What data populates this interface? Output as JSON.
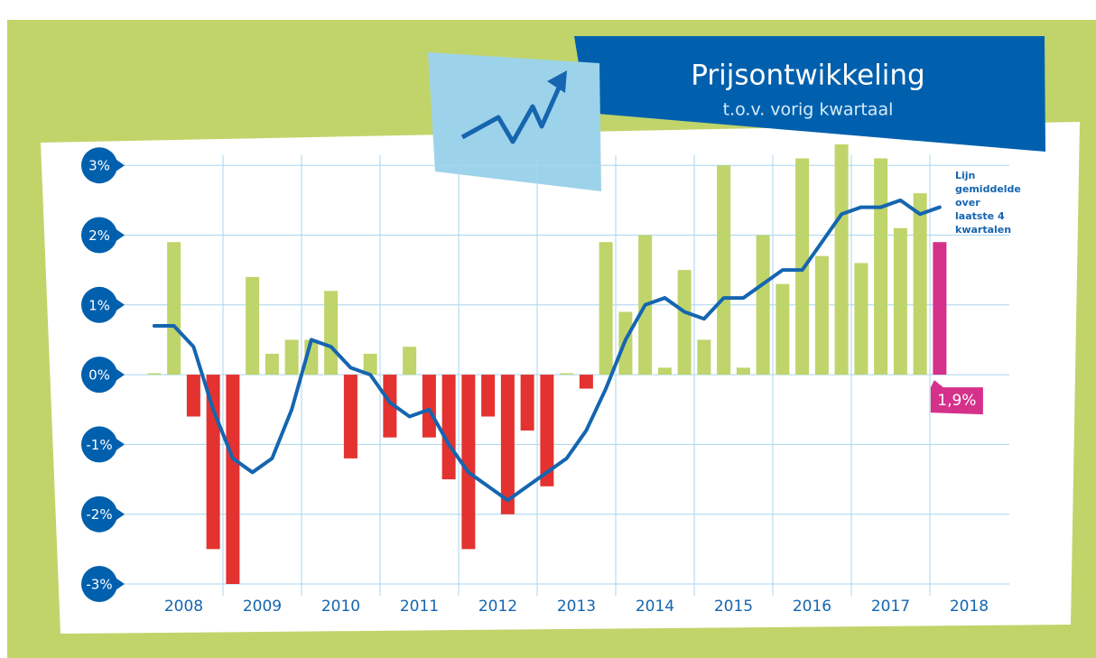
{
  "chart_data": {
    "type": "bar-line",
    "title": "Prijsontwikkeling",
    "subtitle": "t.o.v. vorig kwartaal",
    "categories": [
      null,
      null,
      null,
      null,
      null,
      null,
      null,
      null,
      null,
      null,
      null,
      null,
      null,
      null,
      null,
      null,
      null,
      null,
      null,
      null,
      null,
      null,
      null,
      null,
      null,
      null,
      null,
      null,
      null,
      null,
      null,
      null,
      null,
      null,
      null,
      null,
      null,
      null,
      null,
      null,
      null
    ],
    "year_labels": [
      "2008",
      "2009",
      "2010",
      "2011",
      "2012",
      "2013",
      "2014",
      "2015",
      "2016",
      "2017",
      "2018"
    ],
    "values": [
      0.02,
      1.9,
      -0.6,
      -2.5,
      -3.0,
      1.4,
      0.3,
      0.5,
      0.5,
      1.2,
      -1.2,
      0.3,
      -0.9,
      0.4,
      -0.9,
      -1.5,
      -2.5,
      -0.6,
      -2.0,
      -0.8,
      -1.6,
      0.02,
      -0.2,
      1.9,
      0.9,
      2.0,
      0.1,
      1.5,
      0.5,
      3.0,
      0.1,
      2.0,
      1.3,
      3.1,
      1.7,
      3.3,
      1.6,
      3.1,
      2.1,
      2.6,
      1.9
    ],
    "value_labels": [
      null,
      null,
      null,
      null,
      null,
      null,
      null,
      null,
      null,
      null,
      null,
      null,
      null,
      null,
      null,
      null,
      null,
      null,
      null,
      null,
      null,
      null,
      null,
      null,
      null,
      null,
      null,
      null,
      null,
      null,
      null,
      null,
      null,
      null,
      null,
      null,
      null,
      null,
      null,
      null,
      "1,9%"
    ],
    "positive_color": "#bfd46a",
    "negative_color": "#e3322f",
    "highlight_color": "#d5318b",
    "series": [
      {
        "name": "Lijn gemiddelde over laatste 4 kwartalen",
        "color": "#1565b0",
        "values": [
          0.7,
          0.7,
          0.4,
          -0.5,
          -1.2,
          -1.4,
          -1.2,
          -0.5,
          0.5,
          0.4,
          0.1,
          0.0,
          -0.4,
          -0.6,
          -0.5,
          -1.0,
          -1.4,
          -1.6,
          -1.8,
          -1.6,
          -1.4,
          -1.2,
          -0.8,
          -0.2,
          0.5,
          1.0,
          1.1,
          0.9,
          0.8,
          1.1,
          1.1,
          1.3,
          1.5,
          1.5,
          1.9,
          2.3,
          2.4,
          2.4,
          2.5,
          2.3,
          2.4
        ]
      }
    ],
    "ylim": [
      -3,
      3.3
    ],
    "yticks": [
      {
        "value": 3,
        "label": "3%"
      },
      {
        "value": 2,
        "label": "2%"
      },
      {
        "value": 1,
        "label": "1%"
      },
      {
        "value": 0,
        "label": "0%"
      },
      {
        "value": -1,
        "label": "-1%"
      },
      {
        "value": -2,
        "label": "-2%"
      },
      {
        "value": -3,
        "label": "-3%"
      }
    ],
    "grid": true
  }
}
